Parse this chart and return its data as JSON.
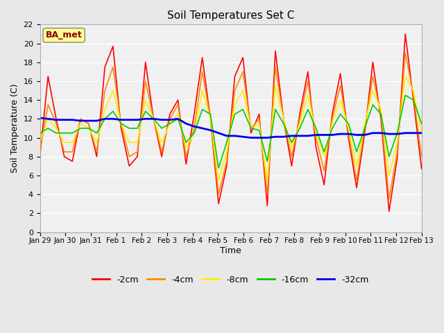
{
  "title": "Soil Temperatures Set C",
  "xlabel": "Time",
  "ylabel": "Soil Temperature (C)",
  "annotation": "BA_met",
  "annotation_color": "#8B0000",
  "annotation_bg": "#FFFF99",
  "ylim": [
    0,
    22
  ],
  "yticks": [
    0,
    2,
    4,
    6,
    8,
    10,
    12,
    14,
    16,
    18,
    20,
    22
  ],
  "xtick_labels": [
    "Jan 29",
    "Jan 30",
    "Jan 31",
    "Feb 1",
    "Feb 2",
    "Feb 3",
    "Feb 4",
    "Feb 5",
    "Feb 6",
    "Feb 7",
    "Feb 8",
    "Feb 9",
    "Feb 10",
    "Feb 11",
    "Feb 12",
    "Feb 13"
  ],
  "bg_color": "#E8E8E8",
  "plot_bg": "#F0F0F0",
  "grid_color": "#FFFFFF",
  "line_colors": {
    "-2cm": "#FF0000",
    "-4cm": "#FF8800",
    "-8cm": "#FFEE00",
    "-16cm": "#00CC00",
    "-32cm": "#0000EE"
  },
  "line_widths": {
    "-2cm": 1.2,
    "-4cm": 1.2,
    "-8cm": 1.2,
    "-16cm": 1.2,
    "-32cm": 2.0
  },
  "series": {
    "-2cm": [
      8.0,
      16.5,
      12.0,
      8.0,
      7.5,
      12.0,
      11.5,
      8.0,
      17.5,
      19.7,
      11.0,
      7.0,
      8.0,
      18.0,
      12.0,
      8.0,
      12.5,
      14.0,
      7.2,
      12.5,
      18.5,
      12.0,
      3.0,
      7.0,
      16.5,
      18.5,
      10.5,
      12.5,
      2.8,
      19.2,
      12.0,
      7.0,
      12.5,
      17.0,
      9.0,
      5.0,
      12.5,
      16.8,
      10.0,
      4.7,
      10.5,
      18.0,
      12.0,
      2.2,
      7.8,
      21.0,
      14.0,
      6.7
    ],
    "-4cm": [
      8.5,
      13.5,
      11.5,
      8.5,
      8.5,
      12.0,
      11.5,
      8.5,
      15.0,
      17.5,
      11.5,
      8.0,
      8.5,
      16.0,
      12.0,
      8.5,
      12.0,
      13.5,
      8.0,
      11.0,
      17.0,
      12.0,
      4.0,
      7.5,
      15.0,
      17.0,
      11.0,
      12.0,
      4.0,
      17.5,
      12.0,
      8.0,
      12.0,
      16.0,
      10.0,
      6.5,
      12.0,
      15.5,
      10.5,
      5.5,
      11.0,
      16.5,
      12.5,
      3.5,
      8.5,
      19.0,
      14.5,
      8.0
    ],
    "-8cm": [
      9.5,
      12.0,
      11.0,
      9.5,
      9.5,
      11.5,
      11.0,
      9.5,
      13.0,
      15.0,
      11.5,
      9.5,
      9.5,
      14.0,
      12.0,
      9.5,
      11.5,
      12.5,
      9.0,
      10.5,
      15.0,
      12.0,
      5.5,
      8.5,
      13.5,
      15.0,
      11.0,
      11.5,
      5.5,
      15.5,
      12.0,
      9.0,
      11.5,
      14.5,
      10.5,
      8.0,
      11.5,
      14.0,
      11.0,
      7.0,
      11.5,
      15.0,
      13.0,
      6.0,
      9.5,
      16.5,
      15.0,
      10.5
    ],
    "-16cm": [
      10.5,
      11.0,
      10.5,
      10.5,
      10.5,
      11.0,
      11.0,
      10.5,
      12.0,
      12.8,
      11.5,
      11.0,
      11.0,
      12.8,
      12.0,
      11.0,
      11.5,
      12.0,
      9.5,
      10.5,
      13.0,
      12.5,
      6.8,
      9.5,
      12.5,
      13.0,
      11.0,
      10.8,
      7.5,
      13.0,
      11.5,
      9.5,
      11.0,
      13.0,
      11.0,
      8.5,
      11.0,
      12.5,
      11.5,
      8.5,
      11.0,
      13.5,
      12.5,
      8.0,
      10.5,
      14.5,
      14.0,
      11.5
    ],
    "-32cm": [
      12.1,
      12.0,
      11.9,
      11.9,
      11.9,
      11.8,
      11.8,
      11.8,
      12.0,
      12.0,
      11.9,
      11.9,
      11.9,
      12.0,
      12.0,
      11.9,
      11.9,
      12.0,
      11.5,
      11.2,
      11.0,
      10.8,
      10.5,
      10.2,
      10.2,
      10.1,
      10.0,
      10.0,
      10.0,
      10.1,
      10.1,
      10.2,
      10.2,
      10.2,
      10.3,
      10.3,
      10.3,
      10.4,
      10.4,
      10.3,
      10.3,
      10.5,
      10.5,
      10.4,
      10.4,
      10.5,
      10.5,
      10.5
    ]
  }
}
